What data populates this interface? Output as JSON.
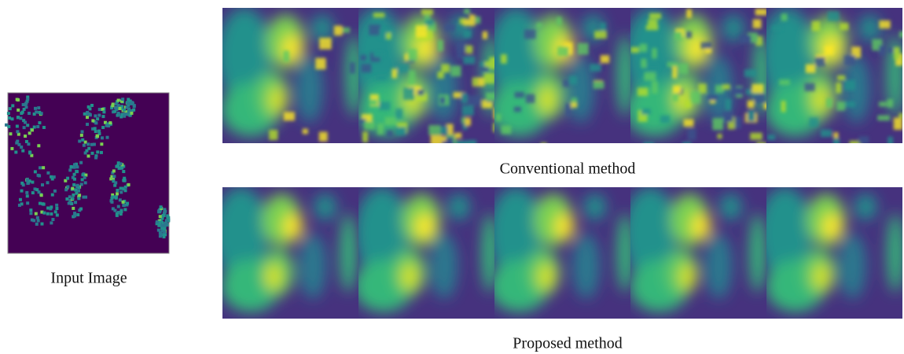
{
  "input": {
    "caption": "Input Image"
  },
  "conventional": {
    "caption": "Conventional method"
  },
  "proposed": {
    "caption": "Proposed method"
  }
}
